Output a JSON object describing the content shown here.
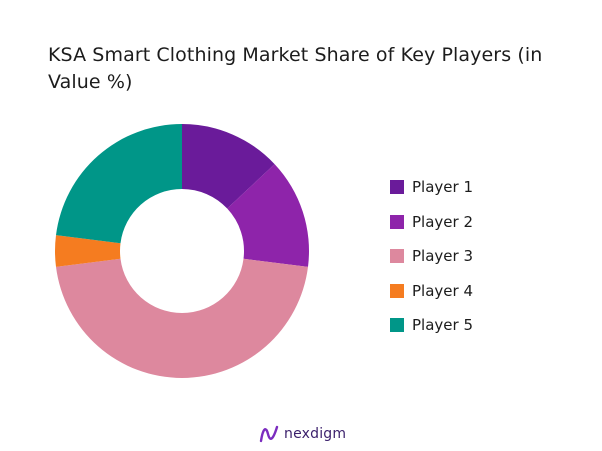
{
  "chart_data": {
    "type": "pie",
    "title": "KSA Smart Clothing Market Share of Key Players (in Value %)",
    "donut": true,
    "legend_position": "right",
    "series": [
      {
        "name": "Player 1",
        "value": 13,
        "color": "#6a1b9a"
      },
      {
        "name": "Player 2",
        "value": 14,
        "color": "#8e24aa"
      },
      {
        "name": "Player 3",
        "value": 46,
        "color": "#dd889e"
      },
      {
        "name": "Player 4",
        "value": 4,
        "color": "#f57c20"
      },
      {
        "name": "Player 5",
        "value": 23,
        "color": "#009688"
      }
    ]
  },
  "logo": {
    "text": "nexdigm",
    "color": "#7b2cbf"
  }
}
